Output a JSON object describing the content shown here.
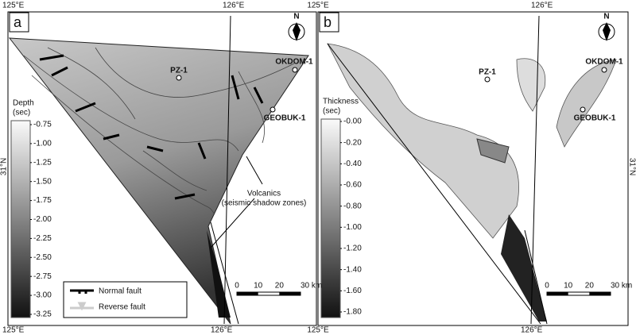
{
  "panels": [
    {
      "label": "a",
      "top_lon": [
        "125°E",
        "126°E"
      ],
      "bottom_lon": [
        "125°E",
        "126°E"
      ],
      "lat": "31°N",
      "north": "N",
      "legend_title": [
        "Depth",
        "(sec)"
      ],
      "legend_ticks": [
        "-0.75",
        "-1.00",
        "-1.25",
        "-1.50",
        "-1.75",
        "-2.00",
        "-2.25",
        "-2.50",
        "-2.75",
        "-3.00",
        "-3.25"
      ],
      "wells": [
        "PZ-1",
        "OKDOM-1",
        "GEOBUK-1"
      ],
      "annotation": [
        "Volcanics",
        "(seismic shadow zones)"
      ],
      "fault_legend": [
        "Normal fault",
        "Reverse fault"
      ],
      "scale": [
        "0",
        "10",
        "20",
        "30 km"
      ]
    },
    {
      "label": "b",
      "top_lon": [
        "125°E",
        "126°E"
      ],
      "bottom_lon": [
        "125°E",
        "126°E"
      ],
      "lat": "31°N",
      "north": "N",
      "legend_title": [
        "Thickness",
        "(sec)"
      ],
      "legend_ticks": [
        "-0.00",
        "-0.20",
        "-0.40",
        "-0.60",
        "-0.80",
        "-1.00",
        "-1.20",
        "-1.40",
        "-1.60",
        "-1.80"
      ],
      "wells": [
        "PZ-1",
        "OKDOM-1",
        "GEOBUK-1"
      ],
      "scale": [
        "0",
        "10",
        "20",
        "30 km"
      ]
    }
  ]
}
